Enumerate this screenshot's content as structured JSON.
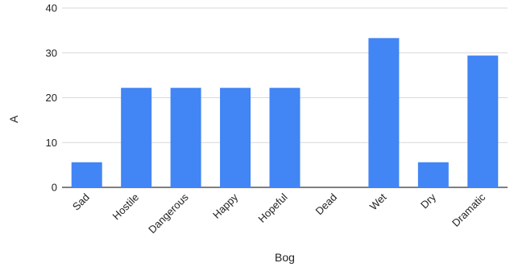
{
  "chart_data": {
    "type": "bar",
    "title": "",
    "xlabel": "Bog",
    "ylabel": "A",
    "categories": [
      "Sad",
      "Hostile",
      "Dangerous",
      "Happy",
      "Hopeful",
      "Dead",
      "Wet",
      "Dry",
      "Dramatic"
    ],
    "series": [
      {
        "values": [
          5.6,
          22.2,
          22.2,
          22.2,
          22.2,
          0,
          33.3,
          5.6,
          29.4
        ]
      }
    ],
    "ylim": [
      0,
      40
    ],
    "yticks": [
      "0",
      "10",
      "20",
      "30",
      "40"
    ],
    "grid": true,
    "legend": "none",
    "colors": {
      "bar": "#4285f4",
      "grid": "#d9d9d9",
      "axis": "#333333"
    }
  }
}
